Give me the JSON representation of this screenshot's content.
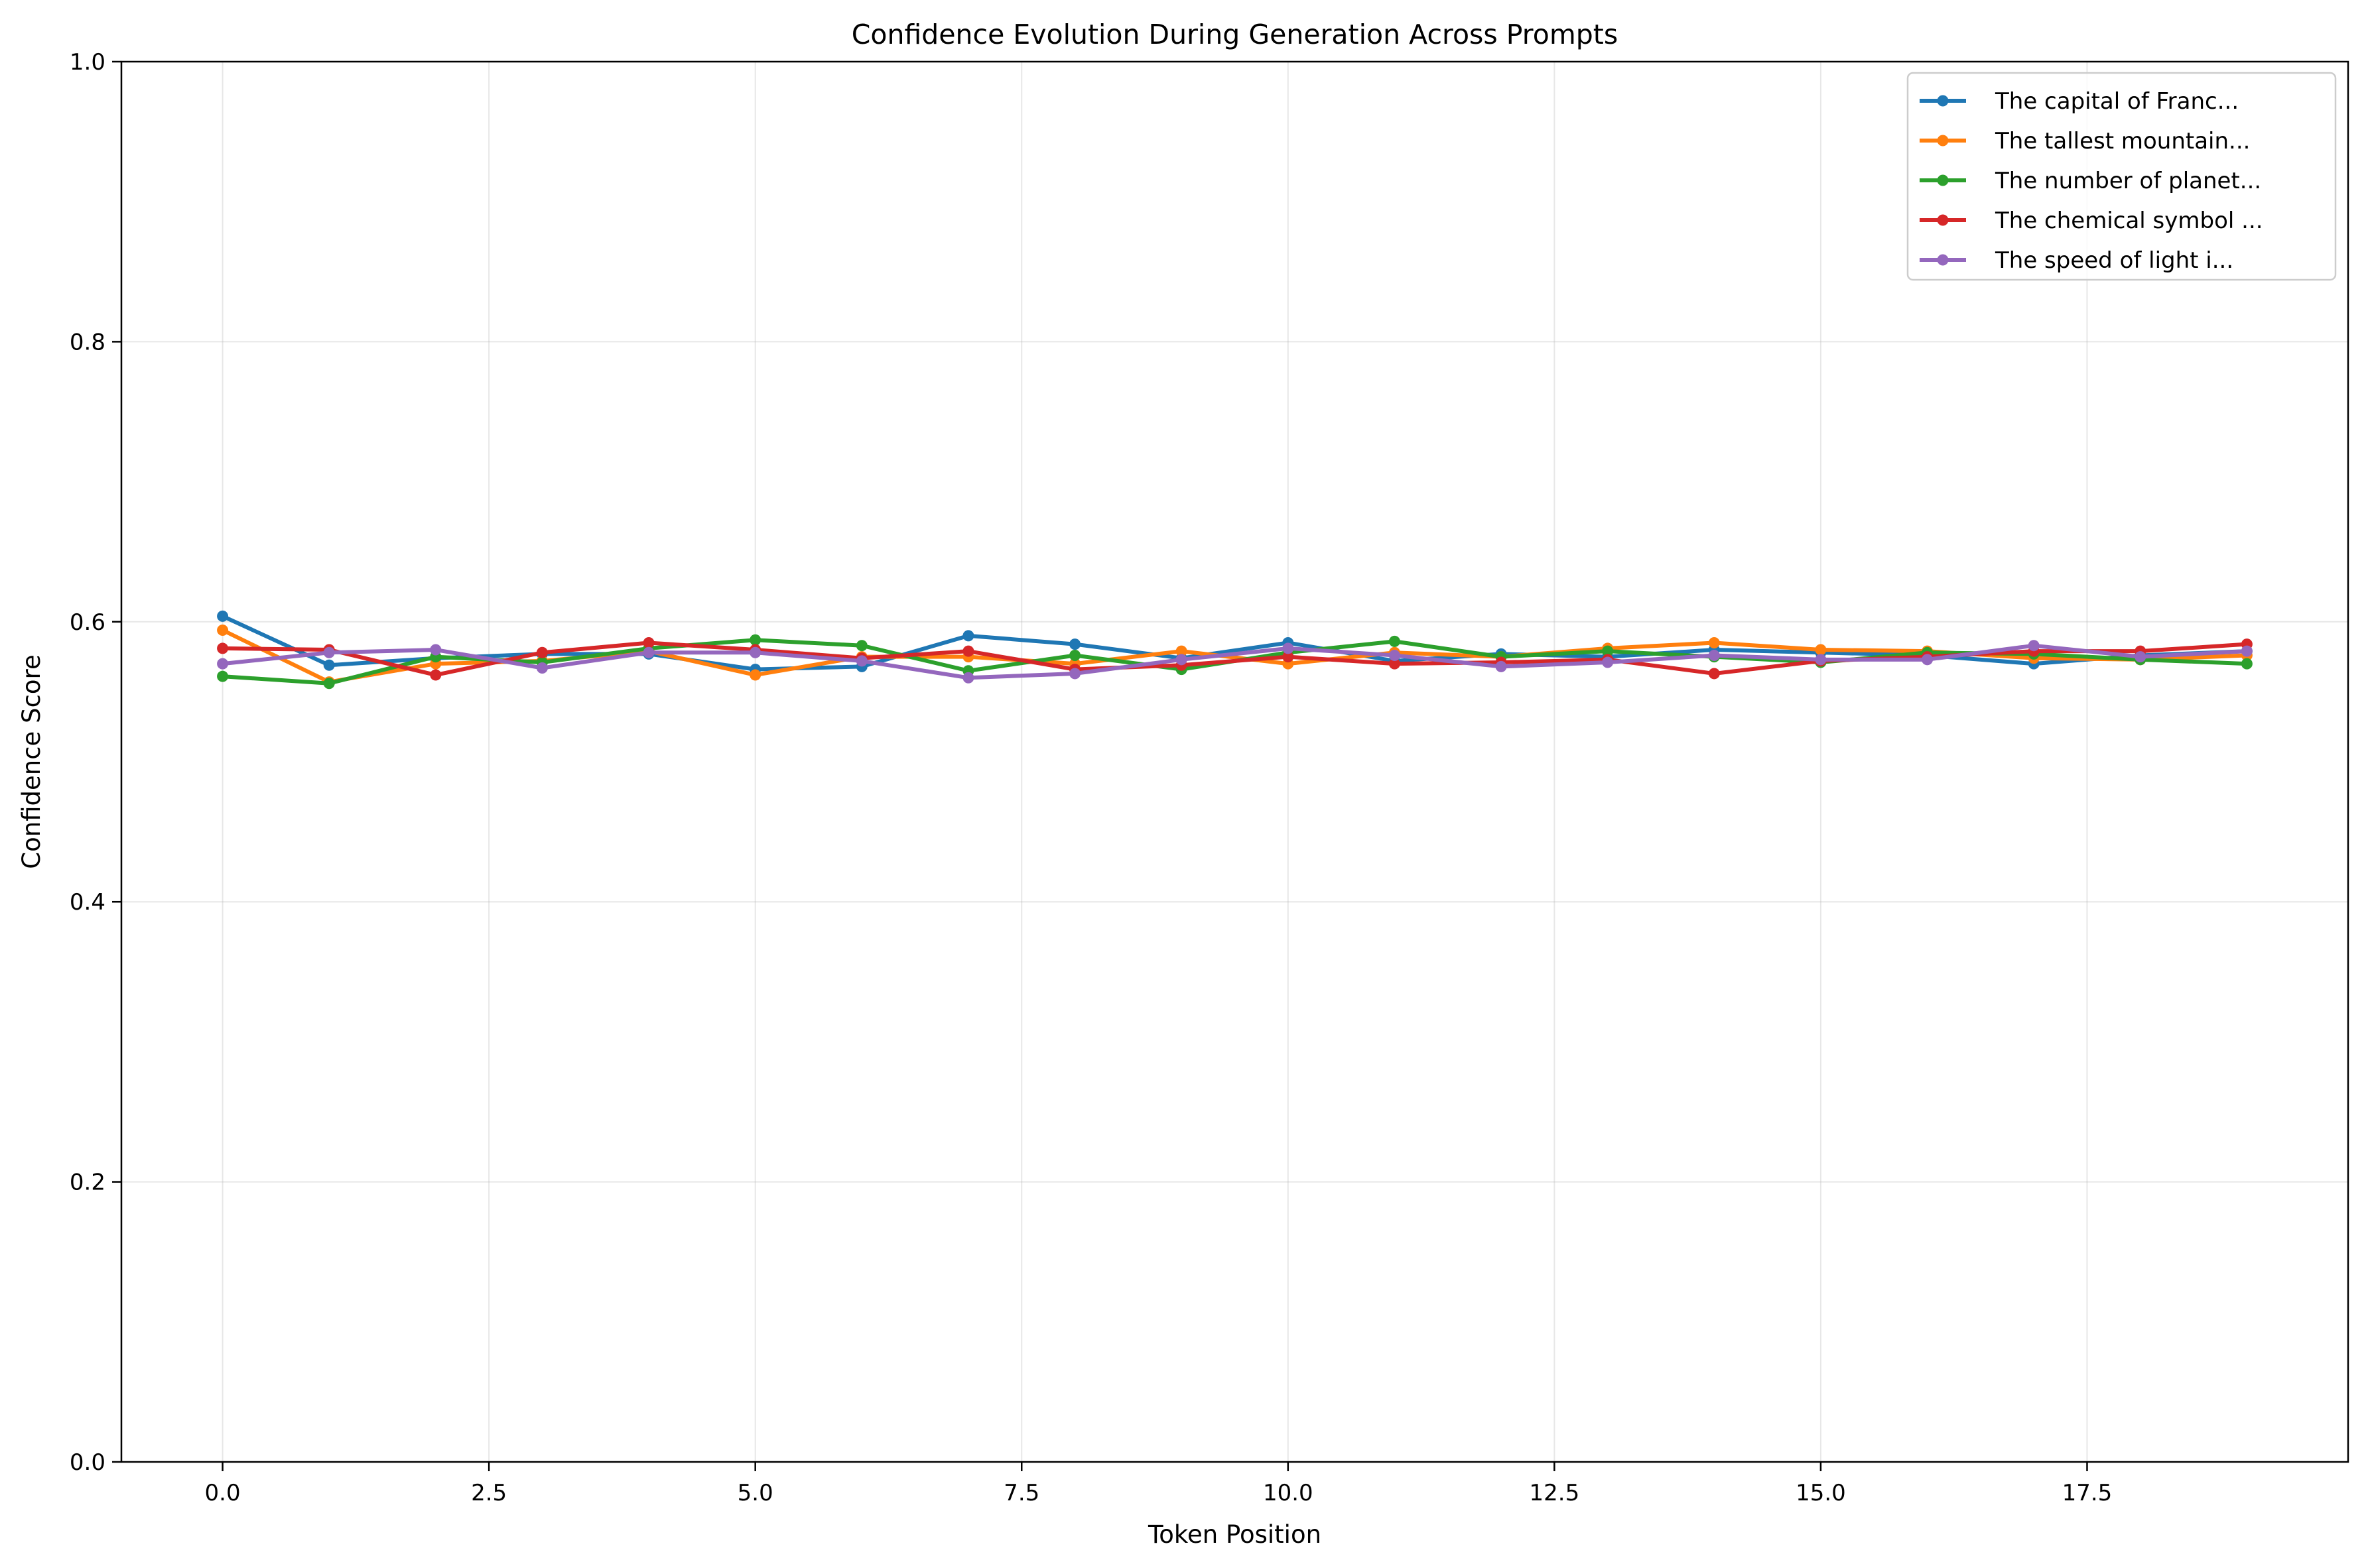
{
  "chart_data": {
    "type": "line",
    "title": "Confidence Evolution During Generation Across Prompts",
    "xlabel": "Token Position",
    "ylabel": "Confidence Score",
    "xlim": [
      -0.95,
      19.95
    ],
    "ylim": [
      0.0,
      1.0
    ],
    "xticks": [
      0.0,
      2.5,
      5.0,
      7.5,
      10.0,
      12.5,
      15.0,
      17.5
    ],
    "xtick_labels": [
      "0.0",
      "2.5",
      "5.0",
      "7.5",
      "10.0",
      "12.5",
      "15.0",
      "17.5"
    ],
    "yticks": [
      0.0,
      0.2,
      0.4,
      0.6,
      0.8,
      1.0
    ],
    "ytick_labels": [
      "0.0",
      "0.2",
      "0.4",
      "0.6",
      "0.8",
      "1.0"
    ],
    "grid": true,
    "legend_position": "top-right",
    "x": [
      0,
      1,
      2,
      3,
      4,
      5,
      6,
      7,
      8,
      9,
      10,
      11,
      12,
      13,
      14,
      15,
      16,
      17,
      18,
      19
    ],
    "series": [
      {
        "name": "The capital of Franc...",
        "color": "#1f77b4",
        "values": [
          0.604,
          0.569,
          0.574,
          0.577,
          0.577,
          0.566,
          0.568,
          0.59,
          0.584,
          0.574,
          0.585,
          0.572,
          0.577,
          0.575,
          0.58,
          0.578,
          0.576,
          0.57,
          0.576,
          0.579
        ]
      },
      {
        "name": "The tallest mountain...",
        "color": "#ff7f0e",
        "values": [
          0.594,
          0.557,
          0.57,
          0.572,
          0.579,
          0.562,
          0.575,
          0.575,
          0.57,
          0.579,
          0.57,
          0.578,
          0.575,
          0.581,
          0.585,
          0.58,
          0.579,
          0.574,
          0.573,
          0.576
        ]
      },
      {
        "name": "The number of planet...",
        "color": "#2ca02c",
        "values": [
          0.561,
          0.556,
          0.575,
          0.571,
          0.581,
          0.587,
          0.583,
          0.565,
          0.576,
          0.566,
          0.578,
          0.586,
          0.575,
          0.579,
          0.575,
          0.571,
          0.578,
          0.577,
          0.573,
          0.57
        ]
      },
      {
        "name": "The chemical symbol ...",
        "color": "#d62728",
        "values": [
          0.581,
          0.58,
          0.562,
          0.578,
          0.585,
          0.58,
          0.574,
          0.579,
          0.566,
          0.569,
          0.575,
          0.57,
          0.571,
          0.573,
          0.563,
          0.572,
          0.575,
          0.579,
          0.579,
          0.584
        ]
      },
      {
        "name": "The speed of light i...",
        "color": "#9467bd",
        "values": [
          0.57,
          0.578,
          0.58,
          0.567,
          0.578,
          0.578,
          0.572,
          0.56,
          0.563,
          0.573,
          0.581,
          0.576,
          0.568,
          0.571,
          0.576,
          0.573,
          0.573,
          0.583,
          0.575,
          0.579
        ]
      }
    ]
  }
}
